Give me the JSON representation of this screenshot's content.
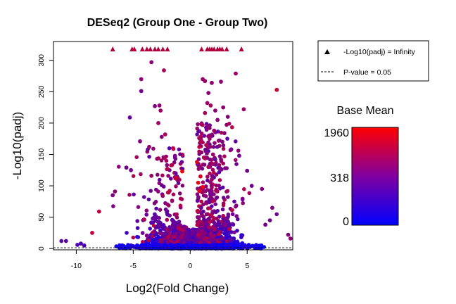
{
  "chart_data": {
    "type": "scatter",
    "title": "DESeq2 (Group One - Group Two)",
    "xlabel": "Log2(Fold Change)",
    "ylabel": "-Log10(padj)",
    "xlim": [
      -12,
      9
    ],
    "ylim": [
      -2,
      330
    ],
    "x_ticks": [
      -10,
      -5,
      0,
      5
    ],
    "x_tick_labels": [
      "-10",
      "-5",
      "0",
      "5"
    ],
    "y_ticks": [
      0,
      50,
      100,
      150,
      200,
      250,
      300
    ],
    "y_tick_labels": [
      "0",
      "50",
      "100",
      "150",
      "200",
      "250",
      "300"
    ],
    "pvalue_threshold_line": 1.3,
    "legend": {
      "placement": "top-right outside",
      "infinity_label": "-Log10(padj) = Infinity",
      "pvalue_label": "P-value = 0.05"
    },
    "color_scale": {
      "title": "Base Mean",
      "labels": [
        "1960",
        "318",
        "0"
      ],
      "low_color": "#0000ff",
      "high_color": "#ff0000"
    },
    "infinity_points_x": [
      -6.8,
      -5.1,
      -4.9,
      -4.2,
      -3.8,
      -3.5,
      -3.1,
      -2.8,
      -2.4,
      -2.0,
      1.0,
      1.5,
      1.7,
      1.9,
      2.1,
      2.4,
      2.6,
      2.8,
      3.2,
      4.5
    ],
    "infinity_points_color": "#b2003c",
    "points": [
      {
        "x": -2.3,
        "y": 284,
        "c": 0.65
      },
      {
        "x": -3.4,
        "y": 297,
        "c": 0.55
      },
      {
        "x": -4.3,
        "y": 270,
        "c": 0.55
      },
      {
        "x": -4.3,
        "y": 251,
        "c": 0.45
      },
      {
        "x": -2.7,
        "y": 228,
        "c": 0.55
      },
      {
        "x": -3.1,
        "y": 227,
        "c": 0.5
      },
      {
        "x": -2.6,
        "y": 220,
        "c": 0.6
      },
      {
        "x": -5.3,
        "y": 209,
        "c": 0.4
      },
      {
        "x": -2.8,
        "y": 200,
        "c": 0.6
      },
      {
        "x": -2.2,
        "y": 182,
        "c": 0.65
      },
      {
        "x": -2.5,
        "y": 178,
        "c": 0.55
      },
      {
        "x": -4.4,
        "y": 171,
        "c": 0.5
      },
      {
        "x": -3.6,
        "y": 162,
        "c": 0.55
      },
      {
        "x": -1.5,
        "y": 160,
        "c": 0.75
      },
      {
        "x": -2.1,
        "y": 140,
        "c": 0.65
      },
      {
        "x": -2.9,
        "y": 143,
        "c": 0.6
      },
      {
        "x": -1.6,
        "y": 133,
        "c": 0.7
      },
      {
        "x": -2.0,
        "y": 127,
        "c": 0.7
      },
      {
        "x": -0.7,
        "y": 123,
        "c": 0.95
      },
      {
        "x": -5.6,
        "y": 129,
        "c": 0.45
      },
      {
        "x": -5.2,
        "y": 125,
        "c": 0.45
      },
      {
        "x": -3.4,
        "y": 116,
        "c": 0.6
      },
      {
        "x": -1.3,
        "y": 112,
        "c": 0.8
      },
      {
        "x": -6.6,
        "y": 91,
        "c": 0.55
      },
      {
        "x": -8.0,
        "y": 59,
        "c": 0.75
      },
      {
        "x": -8.6,
        "y": 25,
        "c": 0.75
      },
      {
        "x": -6.8,
        "y": 85,
        "c": 0.5
      },
      {
        "x": 1.1,
        "y": 270,
        "c": 0.6
      },
      {
        "x": 1.3,
        "y": 267,
        "c": 0.6
      },
      {
        "x": 2.7,
        "y": 266,
        "c": 0.55
      },
      {
        "x": 1.9,
        "y": 264,
        "c": 0.55
      },
      {
        "x": 4.0,
        "y": 279,
        "c": 0.6
      },
      {
        "x": 7.6,
        "y": 253,
        "c": 0.8
      },
      {
        "x": 1.6,
        "y": 248,
        "c": 0.55
      },
      {
        "x": 1.5,
        "y": 232,
        "c": 0.6
      },
      {
        "x": 1.8,
        "y": 228,
        "c": 0.65
      },
      {
        "x": 2.9,
        "y": 225,
        "c": 0.55
      },
      {
        "x": 2.2,
        "y": 220,
        "c": 0.55
      },
      {
        "x": 4.7,
        "y": 222,
        "c": 0.6
      },
      {
        "x": 1.3,
        "y": 216,
        "c": 0.65
      },
      {
        "x": 3.3,
        "y": 210,
        "c": 0.5
      },
      {
        "x": 2.4,
        "y": 205,
        "c": 0.55
      },
      {
        "x": 1.0,
        "y": 198,
        "c": 0.65
      },
      {
        "x": 1.7,
        "y": 192,
        "c": 0.6
      },
      {
        "x": 2.1,
        "y": 188,
        "c": 0.6
      },
      {
        "x": 3.0,
        "y": 184,
        "c": 0.55
      },
      {
        "x": 0.9,
        "y": 178,
        "c": 0.7
      },
      {
        "x": 2.5,
        "y": 172,
        "c": 0.55
      },
      {
        "x": 1.4,
        "y": 165,
        "c": 0.7
      },
      {
        "x": 0.8,
        "y": 162,
        "c": 0.75
      },
      {
        "x": 3.6,
        "y": 158,
        "c": 0.45
      },
      {
        "x": 2.0,
        "y": 150,
        "c": 0.6
      },
      {
        "x": 1.2,
        "y": 145,
        "c": 0.7
      },
      {
        "x": 2.7,
        "y": 142,
        "c": 0.55
      },
      {
        "x": 4.3,
        "y": 148,
        "c": 0.45
      },
      {
        "x": 0.6,
        "y": 138,
        "c": 0.85
      },
      {
        "x": 1.6,
        "y": 130,
        "c": 0.65
      },
      {
        "x": 3.2,
        "y": 128,
        "c": 0.5
      },
      {
        "x": 5.0,
        "y": 124,
        "c": 0.45
      },
      {
        "x": 2.3,
        "y": 118,
        "c": 0.55
      },
      {
        "x": 0.9,
        "y": 115,
        "c": 0.85
      },
      {
        "x": 1.9,
        "y": 110,
        "c": 0.6
      },
      {
        "x": 0.7,
        "y": 105,
        "c": 0.95
      },
      {
        "x": 1.1,
        "y": 98,
        "c": 0.95
      },
      {
        "x": 0.8,
        "y": 92,
        "c": 0.9
      },
      {
        "x": 6.3,
        "y": 95,
        "c": 0.5
      },
      {
        "x": 5.4,
        "y": 100,
        "c": 0.45
      },
      {
        "x": 7.2,
        "y": 65,
        "c": 0.5
      },
      {
        "x": 8.6,
        "y": 22,
        "c": 0.5
      },
      {
        "x": 8.8,
        "y": 16,
        "c": 0.55
      },
      {
        "x": 7.0,
        "y": 45,
        "c": 0.45
      },
      {
        "x": 6.6,
        "y": 38,
        "c": 0.45
      },
      {
        "x": -10.9,
        "y": 12,
        "c": 0.35
      },
      {
        "x": -11.3,
        "y": 12,
        "c": 0.35
      },
      {
        "x": -9.6,
        "y": 8,
        "c": 0.3
      },
      {
        "x": -9.3,
        "y": 5,
        "c": 0.3
      },
      {
        "x": -9.9,
        "y": 6,
        "c": 0.3
      }
    ]
  }
}
